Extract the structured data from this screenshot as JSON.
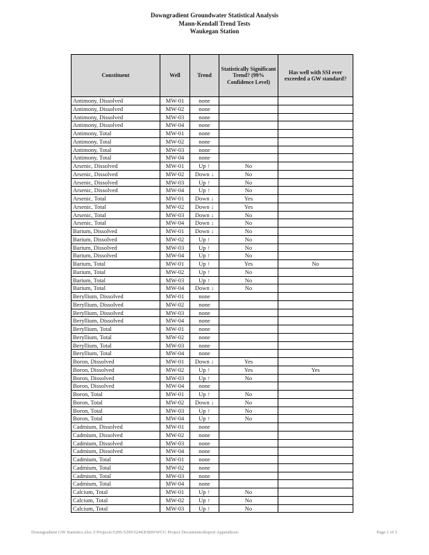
{
  "title": {
    "line1": "Downgradient Groundwater Statistical Analysis",
    "line2": "Mann-Kendall Trend Tests",
    "line3": "Waukegan Station"
  },
  "table": {
    "headers": [
      "Constituent",
      "Well",
      "Trend",
      "Statistically Significant Trend? (99% Confidence Level)",
      "Has well with  SSI ever exceeded a GW standard?"
    ],
    "rows": [
      {
        "constituent": "Antimony, Dissolved",
        "well": "MW-01",
        "trend": "none",
        "significant": "",
        "exceeded": "",
        "style": "none"
      },
      {
        "constituent": "Antimony, Dissolved",
        "well": "MW-02",
        "trend": "none",
        "significant": "",
        "exceeded": "",
        "style": "none"
      },
      {
        "constituent": "Antimony, Dissolved",
        "well": "MW-03",
        "trend": "none",
        "significant": "",
        "exceeded": "",
        "style": "none"
      },
      {
        "constituent": "Antimony, Dissolved",
        "well": "MW-04",
        "trend": "none",
        "significant": "",
        "exceeded": "",
        "style": "none"
      },
      {
        "constituent": "Antimony, Total",
        "well": "MW-01",
        "trend": "none",
        "significant": "",
        "exceeded": "",
        "style": "none"
      },
      {
        "constituent": "Antimony, Total",
        "well": "MW-02",
        "trend": "none",
        "significant": "",
        "exceeded": "",
        "style": "none"
      },
      {
        "constituent": "Antimony, Total",
        "well": "MW-03",
        "trend": "none",
        "significant": "",
        "exceeded": "",
        "style": "none"
      },
      {
        "constituent": "Antimony, Total",
        "well": "MW-04",
        "trend": "none",
        "significant": "",
        "exceeded": "",
        "style": "none"
      },
      {
        "constituent": "Arsenic, Dissolved",
        "well": "MW-01",
        "trend": "Up ↑",
        "significant": "No",
        "exceeded": "",
        "style": "normal"
      },
      {
        "constituent": "Arsenic, Dissolved",
        "well": "MW-02",
        "trend": "Down ↓",
        "significant": "No",
        "exceeded": "",
        "style": "normal"
      },
      {
        "constituent": "Arsenic, Dissolved",
        "well": "MW-03",
        "trend": "Up ↑",
        "significant": "No",
        "exceeded": "",
        "style": "normal"
      },
      {
        "constituent": "Arsenic, Dissolved",
        "well": "MW-04",
        "trend": "Up ↑",
        "significant": "No",
        "exceeded": "",
        "style": "normal"
      },
      {
        "constituent": "Arsenic, Total",
        "well": "MW-01",
        "trend": "Down ↓",
        "significant": "Yes",
        "exceeded": "",
        "style": "green"
      },
      {
        "constituent": "Arsenic, Total",
        "well": "MW-02",
        "trend": "Down ↓",
        "significant": "Yes",
        "exceeded": "",
        "style": "green"
      },
      {
        "constituent": "Arsenic, Total",
        "well": "MW-03",
        "trend": "Down ↓",
        "significant": "No",
        "exceeded": "",
        "style": "normal"
      },
      {
        "constituent": "Arsenic, Total",
        "well": "MW-04",
        "trend": "Down ↓",
        "significant": "No",
        "exceeded": "",
        "style": "normal"
      },
      {
        "constituent": "Barium, Dissolved",
        "well": "MW-01",
        "trend": "Down ↓",
        "significant": "No",
        "exceeded": "",
        "style": "normal"
      },
      {
        "constituent": "Barium, Dissolved",
        "well": "MW-02",
        "trend": "Up ↑",
        "significant": "No",
        "exceeded": "",
        "style": "normal"
      },
      {
        "constituent": "Barium, Dissolved",
        "well": "MW-03",
        "trend": "Up ↑",
        "significant": "No",
        "exceeded": "",
        "style": "normal"
      },
      {
        "constituent": "Barium, Dissolved",
        "well": "MW-04",
        "trend": "Up ↑",
        "significant": "No",
        "exceeded": "",
        "style": "normal"
      },
      {
        "constituent": "Barium, Total",
        "well": "MW-01",
        "trend": "Up ↑",
        "significant": "Yes",
        "exceeded": "No",
        "style": "red"
      },
      {
        "constituent": "Barium, Total",
        "well": "MW-02",
        "trend": "Up ↑",
        "significant": "No",
        "exceeded": "",
        "style": "normal"
      },
      {
        "constituent": "Barium, Total",
        "well": "MW-03",
        "trend": "Up ↑",
        "significant": "No",
        "exceeded": "",
        "style": "normal"
      },
      {
        "constituent": "Barium, Total",
        "well": "MW-04",
        "trend": "Down ↓",
        "significant": "No",
        "exceeded": "",
        "style": "normal"
      },
      {
        "constituent": "Beryllium, Dissolved",
        "well": "MW-01",
        "trend": "none",
        "significant": "",
        "exceeded": "",
        "style": "none"
      },
      {
        "constituent": "Beryllium, Dissolved",
        "well": "MW-02",
        "trend": "none",
        "significant": "",
        "exceeded": "",
        "style": "none"
      },
      {
        "constituent": "Beryllium, Dissolved",
        "well": "MW-03",
        "trend": "none",
        "significant": "",
        "exceeded": "",
        "style": "none"
      },
      {
        "constituent": "Beryllium, Dissolved",
        "well": "MW-04",
        "trend": "none",
        "significant": "",
        "exceeded": "",
        "style": "none"
      },
      {
        "constituent": "Beryllium, Total",
        "well": "MW-01",
        "trend": "none",
        "significant": "",
        "exceeded": "",
        "style": "none"
      },
      {
        "constituent": "Beryllium, Total",
        "well": "MW-02",
        "trend": "none",
        "significant": "",
        "exceeded": "",
        "style": "none"
      },
      {
        "constituent": "Beryllium, Total",
        "well": "MW-03",
        "trend": "none",
        "significant": "",
        "exceeded": "",
        "style": "none"
      },
      {
        "constituent": "Beryllium, Total",
        "well": "MW-04",
        "trend": "none",
        "significant": "",
        "exceeded": "",
        "style": "none"
      },
      {
        "constituent": "Boron, Dissolved",
        "well": "MW-01",
        "trend": "Down ↓",
        "significant": "Yes",
        "exceeded": "",
        "style": "green"
      },
      {
        "constituent": "Boron, Dissolved",
        "well": "MW-02",
        "trend": "Up ↑",
        "significant": "Yes",
        "exceeded": "Yes",
        "style": "red"
      },
      {
        "constituent": "Boron, Dissolved",
        "well": "MW-03",
        "trend": "Up ↑",
        "significant": "No",
        "exceeded": "",
        "style": "normal"
      },
      {
        "constituent": "Boron, Dissolved",
        "well": "MW-04",
        "trend": "none",
        "significant": "",
        "exceeded": "",
        "style": "none"
      },
      {
        "constituent": "Boron, Total",
        "well": "MW-01",
        "trend": "Up ↑",
        "significant": "No",
        "exceeded": "",
        "style": "normal"
      },
      {
        "constituent": "Boron, Total",
        "well": "MW-02",
        "trend": "Down ↓",
        "significant": "No",
        "exceeded": "",
        "style": "normal"
      },
      {
        "constituent": "Boron, Total",
        "well": "MW-03",
        "trend": "Up ↑",
        "significant": "No",
        "exceeded": "",
        "style": "normal"
      },
      {
        "constituent": "Boron, Total",
        "well": "MW-04",
        "trend": "Up ↑",
        "significant": "No",
        "exceeded": "",
        "style": "normal"
      },
      {
        "constituent": "Cadmium, Dissolved",
        "well": "MW-01",
        "trend": "none",
        "significant": "",
        "exceeded": "",
        "style": "none"
      },
      {
        "constituent": "Cadmium, Dissolved",
        "well": "MW-02",
        "trend": "none",
        "significant": "",
        "exceeded": "",
        "style": "none"
      },
      {
        "constituent": "Cadmium, Dissolved",
        "well": "MW-03",
        "trend": "none",
        "significant": "",
        "exceeded": "",
        "style": "none"
      },
      {
        "constituent": "Cadmium, Dissolved",
        "well": "MW-04",
        "trend": "none",
        "significant": "",
        "exceeded": "",
        "style": "none"
      },
      {
        "constituent": "Cadmium, Total",
        "well": "MW-01",
        "trend": "none",
        "significant": "",
        "exceeded": "",
        "style": "none"
      },
      {
        "constituent": "Cadmium, Total",
        "well": "MW-02",
        "trend": "none",
        "significant": "",
        "exceeded": "",
        "style": "none"
      },
      {
        "constituent": "Cadmium, Total",
        "well": "MW-03",
        "trend": "none",
        "significant": "",
        "exceeded": "",
        "style": "none"
      },
      {
        "constituent": "Cadmium, Total",
        "well": "MW-04",
        "trend": "none",
        "significant": "",
        "exceeded": "",
        "style": "none"
      },
      {
        "constituent": "Calcium, Total",
        "well": "MW-01",
        "trend": "Up ↑",
        "significant": "No",
        "exceeded": "",
        "style": "normal"
      },
      {
        "constituent": "Calcium, Total",
        "well": "MW-02",
        "trend": "Up ↑",
        "significant": "No",
        "exceeded": "",
        "style": "normal"
      },
      {
        "constituent": "Calcium, Total",
        "well": "MW-03",
        "trend": "Up ↑",
        "significant": "No",
        "exceeded": "",
        "style": "normal"
      }
    ]
  },
  "footer": {
    "left": "Downgradient GW Statistics.xlsx J:\\Projects\\5200-5299\\5244\\P.B00\\WCG Project Documents\\Report Appendices\\",
    "right": "Page 1 of 3"
  },
  "colors": {
    "header_background": "#d8d8d8",
    "trend_none": "#c6c6c6",
    "trend_significant_down": "#00a550",
    "trend_significant_up": "#ff0000",
    "footer_text": "#7d7d86"
  }
}
